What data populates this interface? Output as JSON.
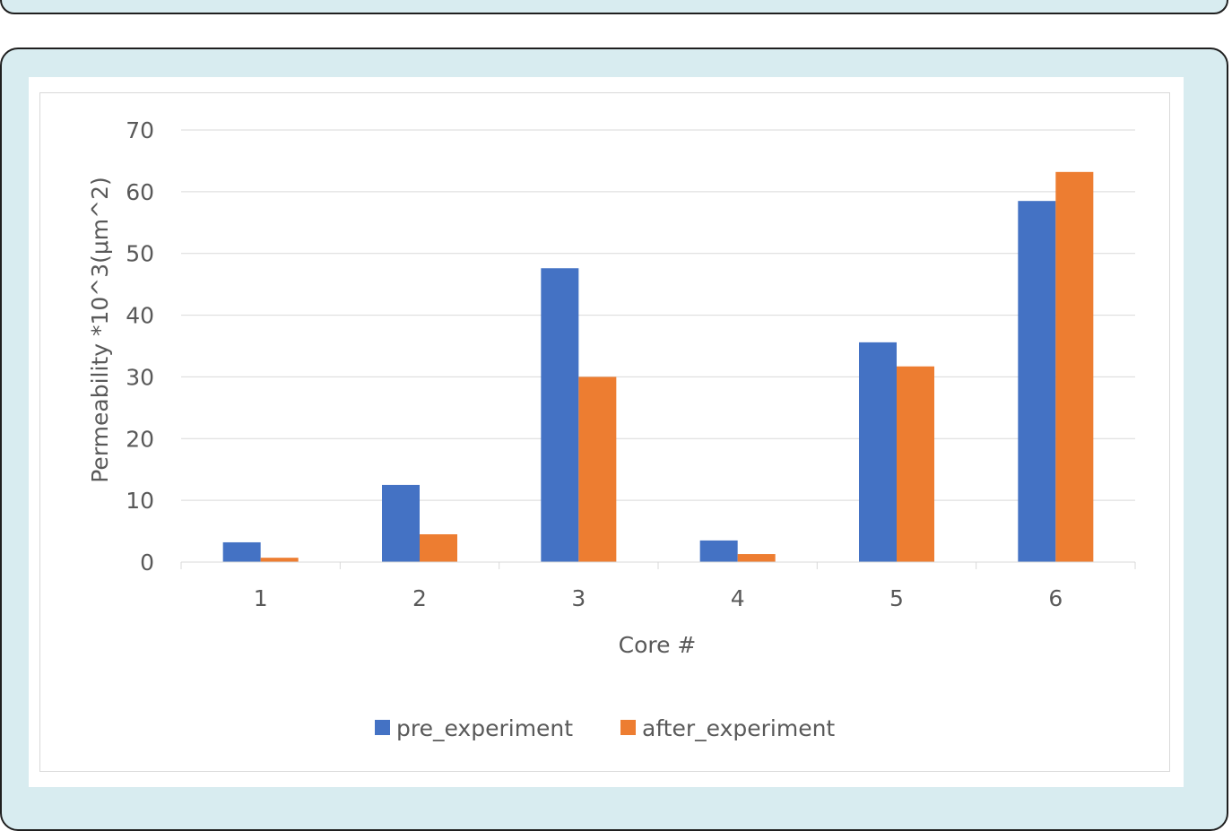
{
  "chart_data": {
    "type": "bar",
    "categories": [
      "1",
      "2",
      "3",
      "4",
      "5",
      "6"
    ],
    "series": [
      {
        "name": "pre_experiment",
        "color": "#4472c4",
        "values": [
          3.2,
          12.5,
          47.6,
          3.5,
          35.6,
          58.5
        ]
      },
      {
        "name": "after_experiment",
        "color": "#ed7d31",
        "values": [
          0.7,
          4.5,
          30.0,
          1.3,
          31.7,
          63.2
        ]
      }
    ],
    "xlabel": "Core #",
    "ylabel": "Permeability *10^3(μm^2)",
    "ylim": [
      0,
      70
    ],
    "yticks": [
      "0",
      "10",
      "20",
      "30",
      "40",
      "50",
      "60",
      "70"
    ],
    "grid": true,
    "legend_position": "bottom"
  }
}
